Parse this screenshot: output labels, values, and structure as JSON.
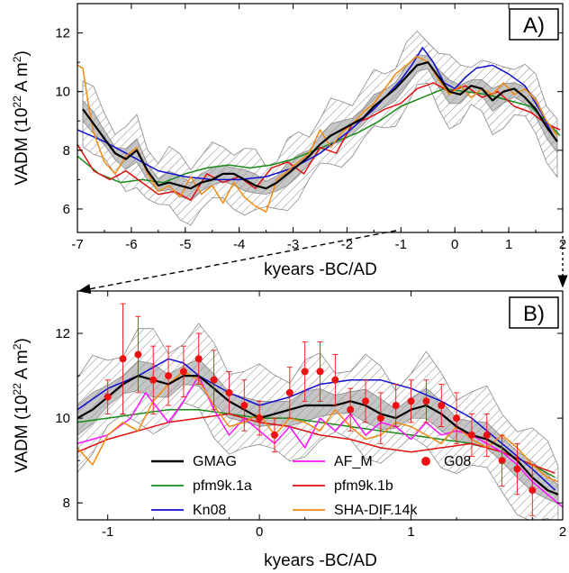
{
  "chart_data": [
    {
      "type": "line",
      "panel_label": "A)",
      "xlabel": "kyears -BC/AD",
      "ylabel": "VADM (10",
      "ylabel_exp1": "22",
      "ylabel_mid": " A m",
      "ylabel_exp2": "2",
      "ylabel_end": ")",
      "xlim": [
        -7,
        2
      ],
      "ylim": [
        5.2,
        13
      ],
      "xticks": [
        -7,
        -6,
        -5,
        -4,
        -3,
        -2,
        -1,
        0,
        1,
        2
      ],
      "yticks": [
        6,
        8,
        10,
        12
      ],
      "series": [
        {
          "name": "GMAG",
          "color": "#000000",
          "x": [
            -6.9,
            -6.7,
            -6.5,
            -6.3,
            -6.1,
            -5.9,
            -5.7,
            -5.5,
            -5.3,
            -5.1,
            -4.9,
            -4.7,
            -4.5,
            -4.3,
            -4.1,
            -3.9,
            -3.7,
            -3.5,
            -3.3,
            -3.1,
            -2.9,
            -2.7,
            -2.5,
            -2.3,
            -2.1,
            -1.9,
            -1.7,
            -1.5,
            -1.3,
            -1.1,
            -0.9,
            -0.7,
            -0.5,
            -0.3,
            -0.1,
            0.1,
            0.3,
            0.5,
            0.7,
            0.9,
            1.1,
            1.3,
            1.5,
            1.7,
            1.9
          ],
          "y": [
            9.4,
            8.9,
            8.4,
            7.9,
            7.7,
            8.0,
            7.3,
            6.8,
            6.9,
            6.8,
            6.7,
            6.9,
            7.0,
            7.2,
            7.2,
            7.0,
            6.8,
            6.7,
            6.9,
            7.2,
            7.5,
            7.8,
            8.2,
            8.5,
            8.7,
            8.9,
            9.1,
            9.5,
            9.8,
            10.1,
            10.5,
            10.9,
            11.0,
            10.5,
            10.0,
            9.9,
            10.2,
            10.1,
            9.7,
            10.0,
            10.1,
            9.8,
            9.4,
            8.8,
            8.3
          ]
        },
        {
          "name": "pfm9k.1a",
          "color": "#1a8a1a",
          "x": [
            -7.0,
            -6.6,
            -6.2,
            -5.8,
            -5.4,
            -5.0,
            -4.6,
            -4.2,
            -3.8,
            -3.4,
            -3.0,
            -2.6,
            -2.2,
            -1.8,
            -1.4,
            -1.0,
            -0.6,
            -0.2,
            0.2,
            0.6,
            1.0,
            1.4,
            1.8,
            1.95
          ],
          "y": [
            7.8,
            7.2,
            6.9,
            7.0,
            6.9,
            7.2,
            7.4,
            7.5,
            7.4,
            7.5,
            7.7,
            8.0,
            8.3,
            8.6,
            9.0,
            9.5,
            9.8,
            10.1,
            10.0,
            9.9,
            9.7,
            9.5,
            8.8,
            8.5
          ]
        },
        {
          "name": "pfm9k.1b",
          "color": "#e01010",
          "x": [
            -7.0,
            -6.7,
            -6.4,
            -6.1,
            -5.8,
            -5.5,
            -5.2,
            -4.9,
            -4.6,
            -4.3,
            -4.0,
            -3.7,
            -3.4,
            -3.1,
            -2.8,
            -2.5,
            -2.2,
            -1.9,
            -1.6,
            -1.3,
            -1.0,
            -0.7,
            -0.4,
            -0.1,
            0.2,
            0.5,
            0.8,
            1.1,
            1.4,
            1.7,
            1.95
          ],
          "y": [
            8.2,
            7.3,
            7.0,
            7.3,
            6.9,
            6.5,
            6.6,
            6.3,
            7.2,
            6.9,
            7.1,
            6.7,
            7.4,
            7.6,
            7.2,
            8.1,
            7.9,
            8.9,
            9.1,
            9.4,
            9.6,
            10.1,
            10.3,
            10.0,
            10.2,
            9.8,
            10.0,
            9.5,
            9.3,
            8.9,
            8.7
          ]
        },
        {
          "name": "Kn08",
          "color": "#1010d0",
          "x": [
            -7.0,
            -6.5,
            -6.0,
            -5.5,
            -5.0,
            -4.5,
            -4.0,
            -3.5,
            -3.0,
            -2.5,
            -2.0,
            -1.5,
            -1.0,
            -0.8,
            -0.6,
            -0.4,
            -0.2,
            0.0,
            0.2,
            0.4,
            0.7,
            1.0,
            1.3,
            1.6,
            1.85
          ],
          "y": [
            8.7,
            8.3,
            7.8,
            7.3,
            7.1,
            7.0,
            7.0,
            7.1,
            7.4,
            7.9,
            8.6,
            9.4,
            10.4,
            10.9,
            11.5,
            11.0,
            10.3,
            10.1,
            10.5,
            10.8,
            10.9,
            10.6,
            10.2,
            9.3,
            8.4
          ]
        },
        {
          "name": "SHA-DIF.14k",
          "color": "#f08a10",
          "x": [
            -7.0,
            -6.9,
            -6.8,
            -6.7,
            -6.5,
            -6.3,
            -6.1,
            -5.9,
            -5.7,
            -5.5,
            -5.3,
            -5.1,
            -4.9,
            -4.7,
            -4.5,
            -4.3,
            -4.1,
            -3.9,
            -3.7,
            -3.5,
            -3.3,
            -3.1,
            -2.9,
            -2.7,
            -2.5,
            -2.3,
            -2.1,
            -1.9,
            -1.7,
            -1.5,
            -1.3,
            -1.1,
            -0.9,
            -0.7,
            -0.5,
            -0.3,
            -0.1,
            0.1,
            0.3,
            0.5,
            0.7,
            0.9,
            1.1,
            1.3,
            1.5,
            1.7,
            1.9
          ],
          "y": [
            10.9,
            10.8,
            9.6,
            8.6,
            7.6,
            7.2,
            7.8,
            8.1,
            7.2,
            6.6,
            6.8,
            6.4,
            7.1,
            6.5,
            6.8,
            6.2,
            6.9,
            6.4,
            6.1,
            5.9,
            7.0,
            7.3,
            7.6,
            7.9,
            8.7,
            8.1,
            8.6,
            8.9,
            9.3,
            9.6,
            10.1,
            10.6,
            10.9,
            11.2,
            11.0,
            10.4,
            9.9,
            10.2,
            9.8,
            10.1,
            9.9,
            10.3,
            9.9,
            10.1,
            9.7,
            9.0,
            8.5
          ]
        }
      ]
    },
    {
      "type": "line",
      "panel_label": "B)",
      "xlabel": "kyears -BC/AD",
      "ylabel": "VADM (10",
      "ylabel_exp1": "22",
      "ylabel_mid": " A m",
      "ylabel_exp2": "2",
      "ylabel_end": ")",
      "xlim": [
        -1.2,
        2
      ],
      "ylim": [
        7.6,
        13
      ],
      "xticks": [
        -1,
        0,
        1,
        2
      ],
      "yticks": [
        8,
        10,
        12
      ],
      "series": [
        {
          "name": "GMAG",
          "color": "#000000",
          "x": [
            -1.2,
            -1.1,
            -1.0,
            -0.9,
            -0.8,
            -0.7,
            -0.6,
            -0.5,
            -0.4,
            -0.3,
            -0.2,
            -0.1,
            0.0,
            0.1,
            0.2,
            0.3,
            0.4,
            0.5,
            0.6,
            0.7,
            0.8,
            0.9,
            1.0,
            1.1,
            1.2,
            1.3,
            1.4,
            1.5,
            1.6,
            1.7,
            1.8,
            1.9,
            1.97
          ],
          "y": [
            10.0,
            10.2,
            10.5,
            10.8,
            11.0,
            10.9,
            10.8,
            11.0,
            11.0,
            10.7,
            10.4,
            10.2,
            10.0,
            10.1,
            10.2,
            10.3,
            10.3,
            10.3,
            10.4,
            10.3,
            10.1,
            10.0,
            10.2,
            10.3,
            10.1,
            9.8,
            9.6,
            9.5,
            9.3,
            9.0,
            8.6,
            8.3,
            8.2
          ]
        },
        {
          "name": "AF_M",
          "color": "#ff10ff",
          "x": [
            -1.2,
            -1.0,
            -0.85,
            -0.75,
            -0.6,
            -0.5,
            -0.4,
            -0.3,
            -0.2,
            -0.1,
            0.0,
            0.1,
            0.2,
            0.3,
            0.4,
            0.5,
            0.6,
            0.7,
            0.8,
            0.9,
            1.0,
            1.1,
            1.2,
            1.3,
            1.4,
            1.5,
            1.6,
            1.7,
            1.8,
            1.9,
            2.0
          ],
          "y": [
            9.4,
            9.6,
            10.0,
            10.6,
            9.9,
            10.4,
            11.0,
            10.2,
            9.6,
            10.0,
            9.7,
            9.4,
            9.8,
            9.3,
            10.0,
            9.7,
            10.1,
            9.6,
            9.9,
            9.8,
            9.5,
            9.9,
            9.6,
            9.7,
            9.6,
            9.4,
            9.2,
            8.9,
            8.5,
            8.2,
            7.9
          ]
        },
        {
          "name": "G08",
          "color": "#ee1111",
          "marker": "circle",
          "x": [
            -1.0,
            -0.9,
            -0.8,
            -0.7,
            -0.6,
            -0.5,
            -0.4,
            -0.3,
            -0.2,
            -0.1,
            0.0,
            0.1,
            0.2,
            0.3,
            0.4,
            0.5,
            0.6,
            0.7,
            0.8,
            0.9,
            1.0,
            1.1,
            1.2,
            1.3,
            1.4,
            1.5,
            1.6,
            1.7,
            1.8
          ],
          "y": [
            10.5,
            11.4,
            11.5,
            10.9,
            11.0,
            11.1,
            11.4,
            10.9,
            10.6,
            10.3,
            10.0,
            9.6,
            10.6,
            11.1,
            11.1,
            10.9,
            10.2,
            10.4,
            10.0,
            10.3,
            10.4,
            10.4,
            10.3,
            10.0,
            9.6,
            9.6,
            9.0,
            8.8,
            8.3
          ],
          "err": [
            0.4,
            1.3,
            0.9,
            0.8,
            0.7,
            0.6,
            0.6,
            0.7,
            0.5,
            0.6,
            0.4,
            0.4,
            0.6,
            0.7,
            0.7,
            0.6,
            0.5,
            0.5,
            0.6,
            0.5,
            0.5,
            0.5,
            0.5,
            0.6,
            0.5,
            0.5,
            0.6,
            0.6,
            0.6
          ]
        },
        {
          "name": "pfm9k.1a",
          "color": "#1a8a1a",
          "x": [
            -1.2,
            -1.0,
            -0.8,
            -0.6,
            -0.4,
            -0.2,
            0.0,
            0.2,
            0.4,
            0.6,
            0.8,
            1.0,
            1.2,
            1.4,
            1.6,
            1.8,
            1.95
          ],
          "y": [
            9.9,
            10.0,
            10.1,
            10.2,
            10.2,
            10.1,
            10.0,
            10.0,
            9.9,
            9.8,
            9.7,
            9.6,
            9.5,
            9.4,
            9.2,
            8.9,
            8.6
          ]
        },
        {
          "name": "pfm9k.1b",
          "color": "#e01010",
          "x": [
            -1.2,
            -1.0,
            -0.8,
            -0.6,
            -0.4,
            -0.2,
            0.0,
            0.2,
            0.4,
            0.6,
            0.8,
            1.0,
            1.2,
            1.4,
            1.6,
            1.8,
            1.95
          ],
          "y": [
            9.2,
            9.5,
            9.7,
            9.9,
            10.0,
            10.1,
            9.9,
            9.8,
            9.6,
            9.5,
            9.3,
            9.2,
            9.3,
            9.4,
            9.2,
            8.9,
            8.7
          ]
        },
        {
          "name": "Kn08",
          "color": "#1010d0",
          "x": [
            -1.2,
            -1.0,
            -0.8,
            -0.6,
            -0.5,
            -0.4,
            -0.3,
            -0.2,
            0.0,
            0.2,
            0.4,
            0.6,
            0.8,
            1.0,
            1.2,
            1.4,
            1.6,
            1.8,
            1.95
          ],
          "y": [
            10.2,
            10.7,
            11.0,
            11.4,
            11.3,
            11.0,
            10.8,
            10.6,
            10.3,
            10.5,
            10.8,
            10.9,
            10.9,
            10.7,
            10.4,
            10.0,
            9.4,
            8.8,
            8.3
          ]
        },
        {
          "name": "SHA-DIF.14k",
          "color": "#f08a10",
          "x": [
            -1.2,
            -1.1,
            -1.0,
            -0.9,
            -0.8,
            -0.7,
            -0.6,
            -0.5,
            -0.4,
            -0.3,
            -0.2,
            -0.1,
            0.0,
            0.1,
            0.2,
            0.3,
            0.4,
            0.5,
            0.6,
            0.7,
            0.8,
            0.9,
            1.0,
            1.1,
            1.2,
            1.3,
            1.4,
            1.5,
            1.6,
            1.7,
            1.8,
            1.9,
            1.97
          ],
          "y": [
            9.3,
            8.9,
            9.6,
            9.9,
            9.7,
            10.4,
            10.8,
            11.1,
            10.9,
            10.3,
            9.8,
            9.9,
            10.1,
            9.6,
            10.0,
            9.9,
            9.7,
            10.2,
            9.8,
            9.5,
            9.6,
            9.9,
            9.8,
            9.6,
            9.4,
            9.8,
            9.5,
            9.3,
            9.6,
            9.3,
            8.9,
            8.6,
            8.5
          ]
        }
      ]
    }
  ],
  "legend": [
    {
      "name": "GMAG",
      "color": "#000000",
      "kind": "line"
    },
    {
      "name": "AF_M",
      "color": "#ff10ff",
      "kind": "line"
    },
    {
      "name": "G08",
      "color": "#ee1111",
      "kind": "marker"
    },
    {
      "name": "pfm9k.1a",
      "color": "#1a8a1a",
      "kind": "line"
    },
    {
      "name": "pfm9k.1b",
      "color": "#e01010",
      "kind": "line"
    },
    {
      "name": "Kn08",
      "color": "#1010d0",
      "kind": "line"
    },
    {
      "name": "SHA-DIF.14k",
      "color": "#f08a10",
      "kind": "line"
    }
  ]
}
